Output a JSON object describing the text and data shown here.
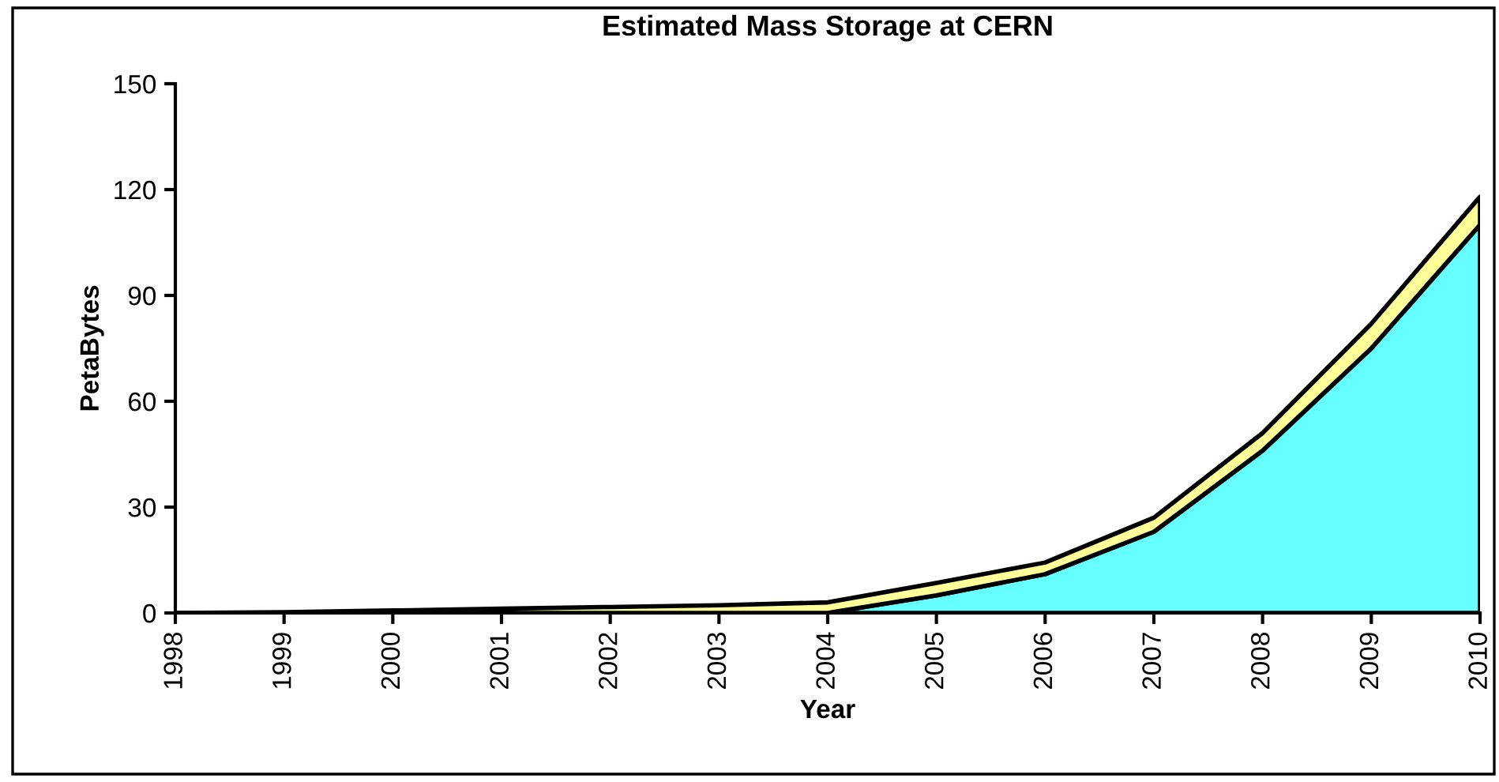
{
  "chart_data": {
    "type": "area",
    "stacked": true,
    "title": "Estimated Mass Storage at CERN",
    "xlabel": "Year",
    "ylabel": "PetaBytes",
    "x": [
      1998,
      1999,
      2000,
      2001,
      2002,
      2003,
      2004,
      2005,
      2006,
      2007,
      2008,
      2009,
      2010
    ],
    "series": [
      {
        "color": "#66ffff",
        "values": [
          0,
          0,
          0,
          0,
          0,
          0,
          0,
          5,
          11,
          23,
          46,
          75,
          110
        ]
      },
      {
        "color": "#ffff99",
        "values": [
          0,
          0.2,
          0.7,
          1.2,
          1.7,
          2.2,
          3,
          3.5,
          3.3,
          4,
          5,
          7,
          8
        ]
      }
    ],
    "xlim": [
      1998,
      2010
    ],
    "xticks": [
      1998,
      1999,
      2000,
      2001,
      2002,
      2003,
      2004,
      2005,
      2006,
      2007,
      2008,
      2009,
      2010
    ],
    "ylim": [
      0,
      150
    ],
    "yticks": [
      0,
      30,
      60,
      90,
      120,
      150
    ],
    "grid": false,
    "legend": false
  }
}
